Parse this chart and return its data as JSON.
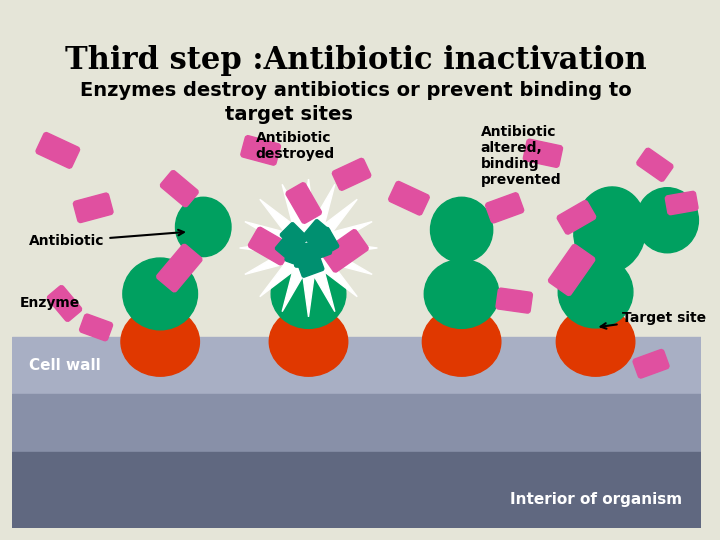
{
  "title": "Third step :Antibiotic inactivation",
  "subtitle1": "Enzymes destroy antibiotics or prevent binding to",
  "subtitle2": "target sites",
  "bg_color_top": "#e5e5d8",
  "bg_color_wall": "#a8afc4",
  "bg_color_interior1": "#8890a8",
  "bg_color_interior2": "#606880",
  "green_color": "#00a060",
  "red_color": "#e03800",
  "pink_color": "#e050a0",
  "white_color": "#ffffff",
  "teal_color": "#009070",
  "label_antibiotic": "Antibiotic",
  "label_enzyme": "Enzyme",
  "label_destroyed": "Antibiotic\ndestroyed",
  "label_altered": "Antibiotic\naltered,\nbinding\nprevented",
  "label_target": "Target site",
  "label_cellwall": "Cell wall",
  "label_interior": "Interior of organism",
  "title_fontsize": 22,
  "subtitle_fontsize": 14
}
